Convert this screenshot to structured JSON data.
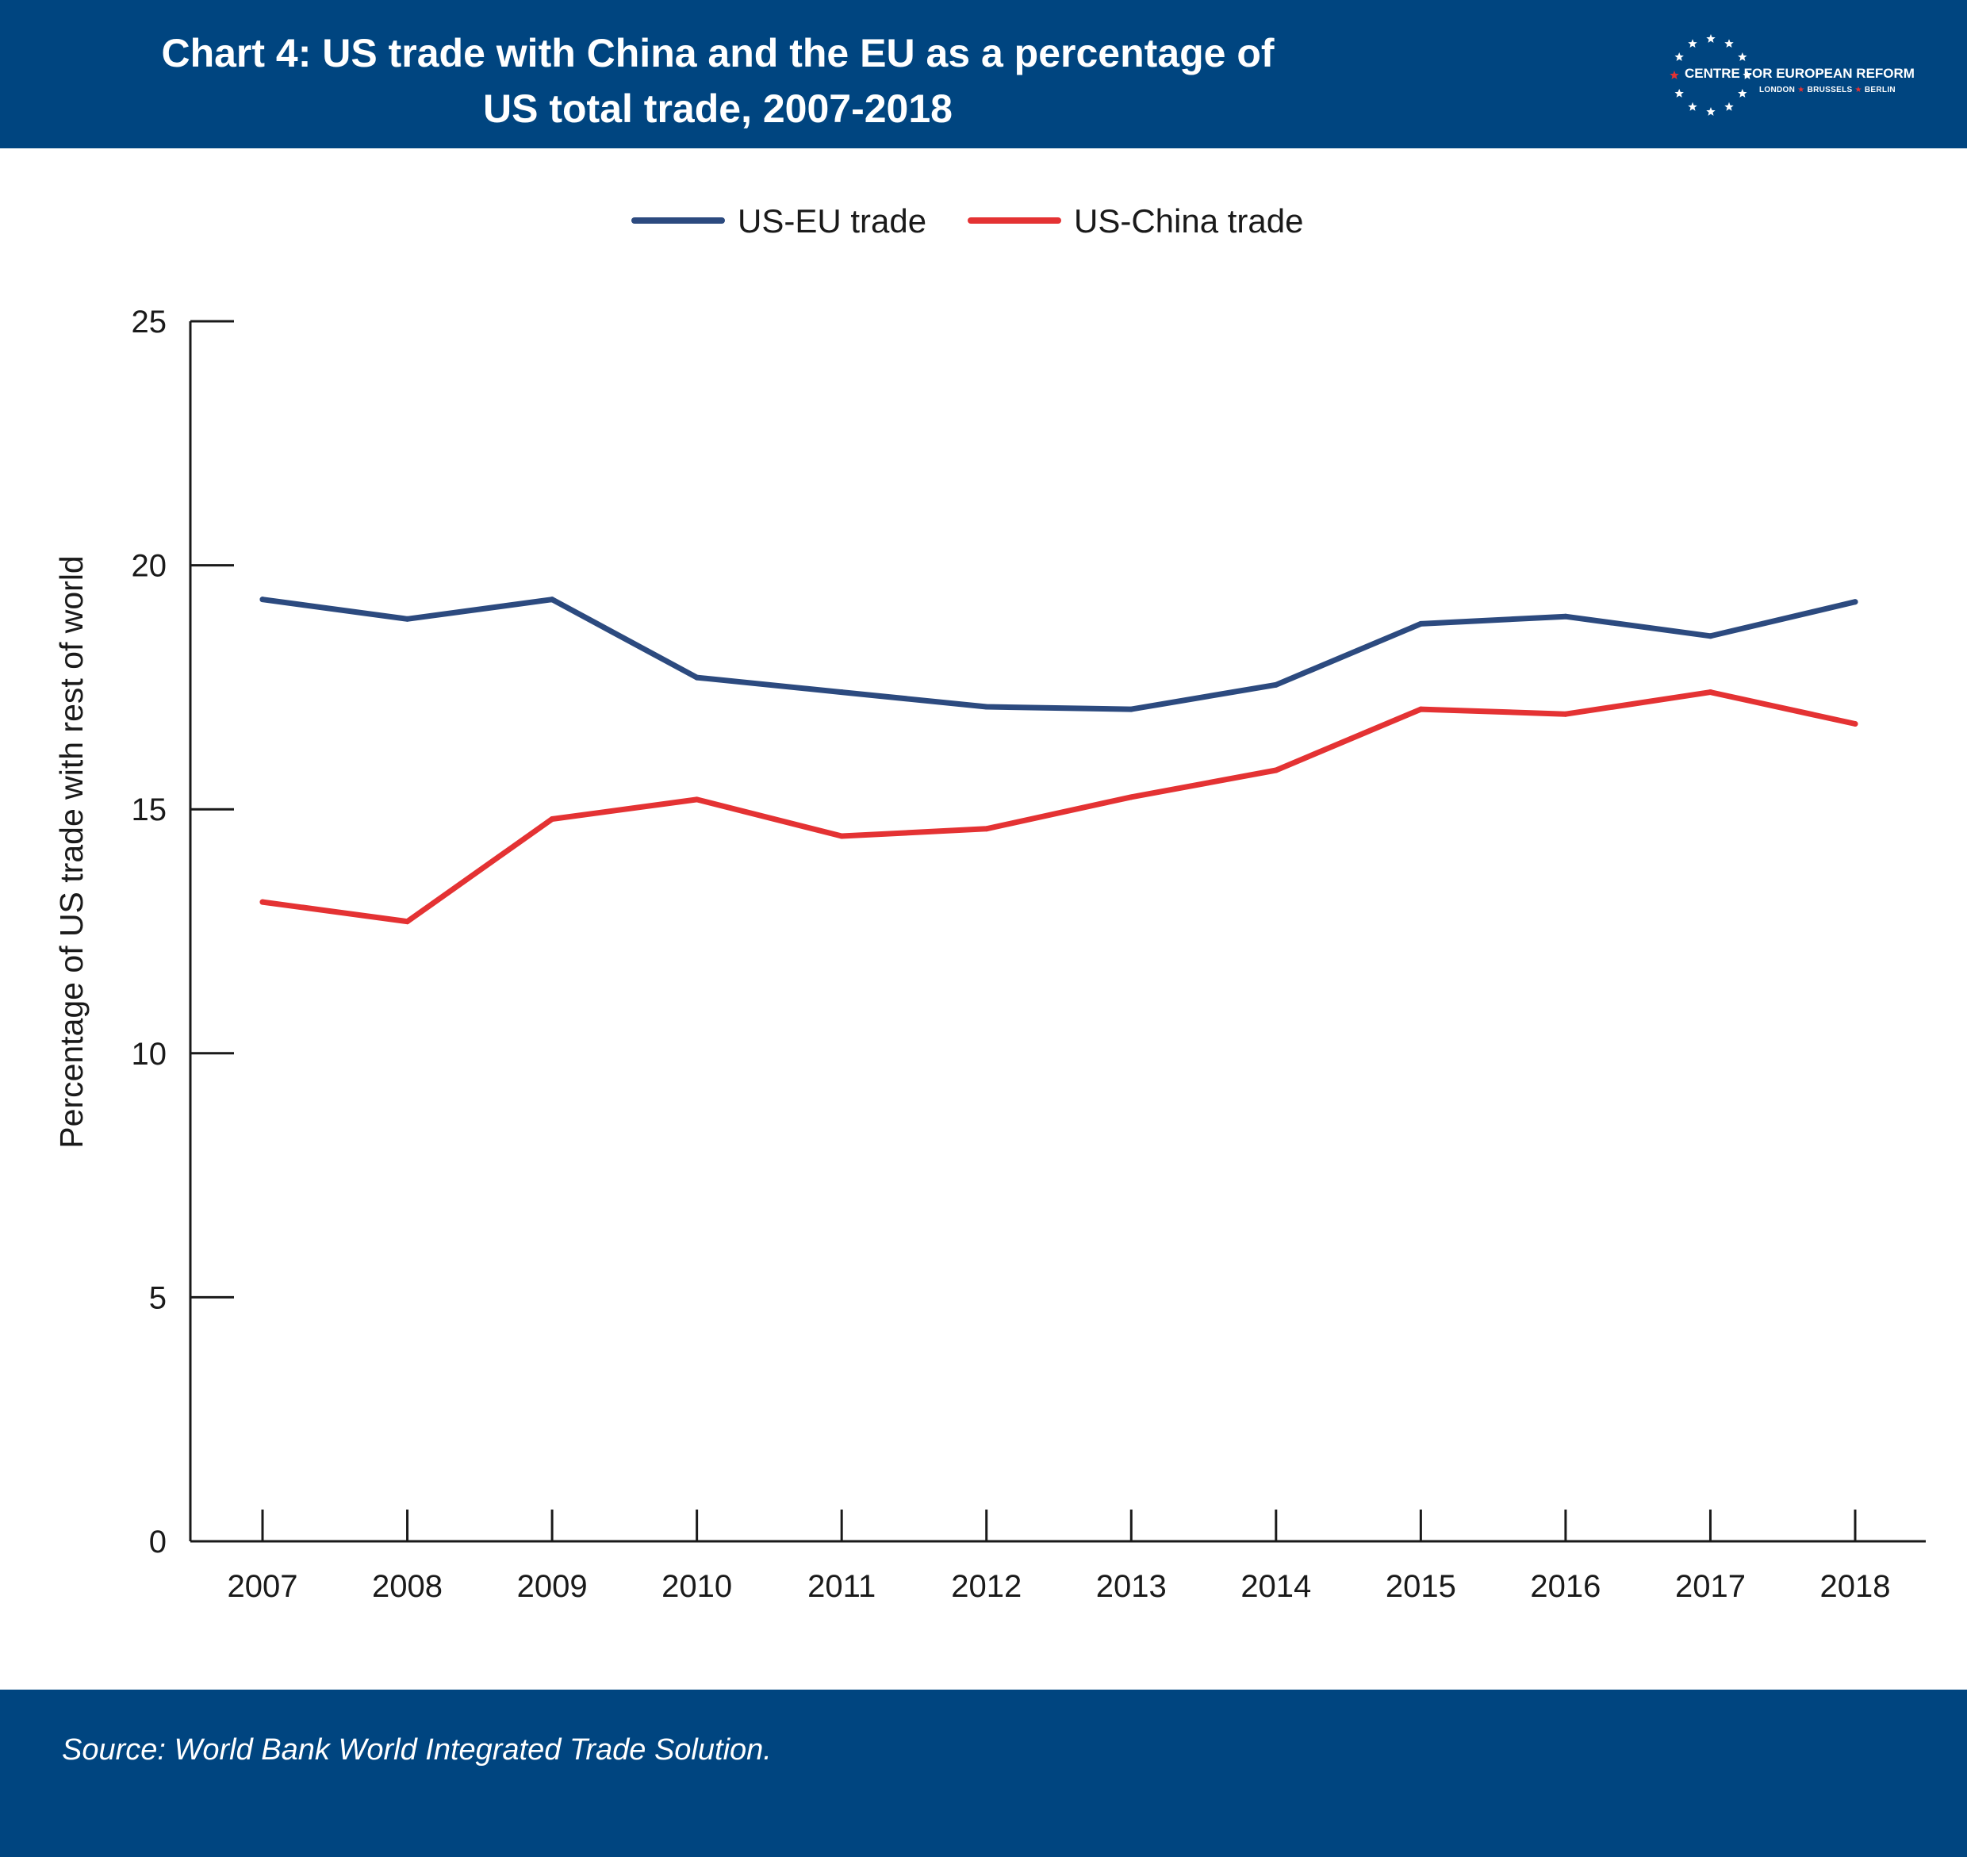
{
  "header": {
    "title_line1": "Chart 4: US trade with China and the EU as a percentage of",
    "title_line2": "US total trade, 2007-2018",
    "background": "#004580"
  },
  "logo": {
    "name": "CENTRE FOR EUROPEAN REFORM",
    "cities": [
      "LONDON",
      "BRUSSELS",
      "BERLIN"
    ]
  },
  "footer": {
    "source": "Source: World Bank World Integrated Trade Solution."
  },
  "chart_data": {
    "type": "line",
    "x": [
      "2007",
      "2008",
      "2009",
      "2010",
      "2011",
      "2012",
      "2013",
      "2014",
      "2015",
      "2016",
      "2017",
      "2018"
    ],
    "series": [
      {
        "name": "US-EU trade",
        "color": "#2c4a7f",
        "values": [
          19.3,
          18.9,
          19.3,
          17.7,
          17.4,
          17.1,
          17.05,
          17.55,
          18.8,
          18.95,
          18.55,
          19.25
        ]
      },
      {
        "name": "US-China trade",
        "color": "#e43233",
        "values": [
          13.1,
          12.7,
          14.8,
          15.2,
          14.45,
          14.6,
          15.25,
          15.8,
          17.05,
          16.95,
          17.4,
          16.75
        ]
      }
    ],
    "ylabel": "Percentage of US trade with rest of world",
    "xlabel": "",
    "ylim": [
      0,
      25
    ],
    "yticks": [
      "0",
      "5",
      "10",
      "15",
      "20",
      "25"
    ],
    "grid": false,
    "legend_position": "top-center"
  }
}
